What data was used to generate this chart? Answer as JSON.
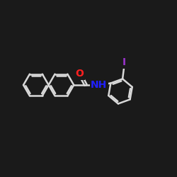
{
  "background_color": "#1a1a1a",
  "bond_color": "#d8d8d8",
  "O_color": "#ff2020",
  "N_color": "#2020ff",
  "I_color": "#9933cc",
  "bond_width": 1.8,
  "font_size_O": 10,
  "font_size_N": 10,
  "font_size_I": 10,
  "xlim": [
    0,
    10
  ],
  "ylim": [
    0,
    10
  ]
}
